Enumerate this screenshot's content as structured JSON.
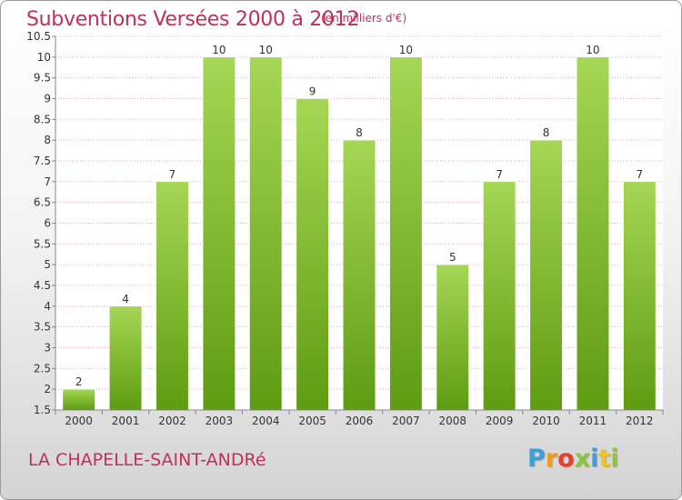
{
  "header": {
    "title": "Subventions Versées 2000 à 2012",
    "unit_note": "(en milliers d'€)"
  },
  "footer": {
    "commune": "LA CHAPELLE-SAINT-ANDRé",
    "logo_letters": [
      "P",
      "r",
      "o",
      "x",
      "i",
      "t",
      "i"
    ],
    "logo_colors": [
      "#3aa0d8",
      "#f39a1e",
      "#e83e2c",
      "#8cc63f",
      "#3aa0d8",
      "#f5c21a",
      "#8cc63f"
    ]
  },
  "colors": {
    "text_accent": "#c0305a",
    "bar_light": "#a6d655",
    "bar_dark": "#5e9c12",
    "grid": "#e5a8ba"
  },
  "chart_data": {
    "type": "bar",
    "categories": [
      "2000",
      "2001",
      "2002",
      "2003",
      "2004",
      "2005",
      "2006",
      "2007",
      "2008",
      "2009",
      "2010",
      "2011",
      "2012"
    ],
    "values": [
      2,
      4,
      7,
      10,
      10,
      9,
      8,
      10,
      5,
      7,
      8,
      10,
      7
    ],
    "data_labels": [
      "2",
      "4",
      "7",
      "10",
      "10",
      "9",
      "8",
      "10",
      "5",
      "7",
      "8",
      "10",
      "7"
    ],
    "ylim": [
      1.5,
      10.5
    ],
    "yticks": [
      1.5,
      2,
      2.5,
      3,
      3.5,
      4,
      4.5,
      5,
      5.5,
      6,
      6.5,
      7,
      7.5,
      8,
      8.5,
      9,
      9.5,
      10,
      10.5
    ],
    "ytick_labels": [
      "1.5",
      "2",
      "2.5",
      "3",
      "3.5",
      "4",
      "4.5",
      "5",
      "5.5",
      "6",
      "6.5",
      "7",
      "7.5",
      "8",
      "8.5",
      "9",
      "9.5",
      "10",
      "10.5"
    ],
    "grid": true
  }
}
